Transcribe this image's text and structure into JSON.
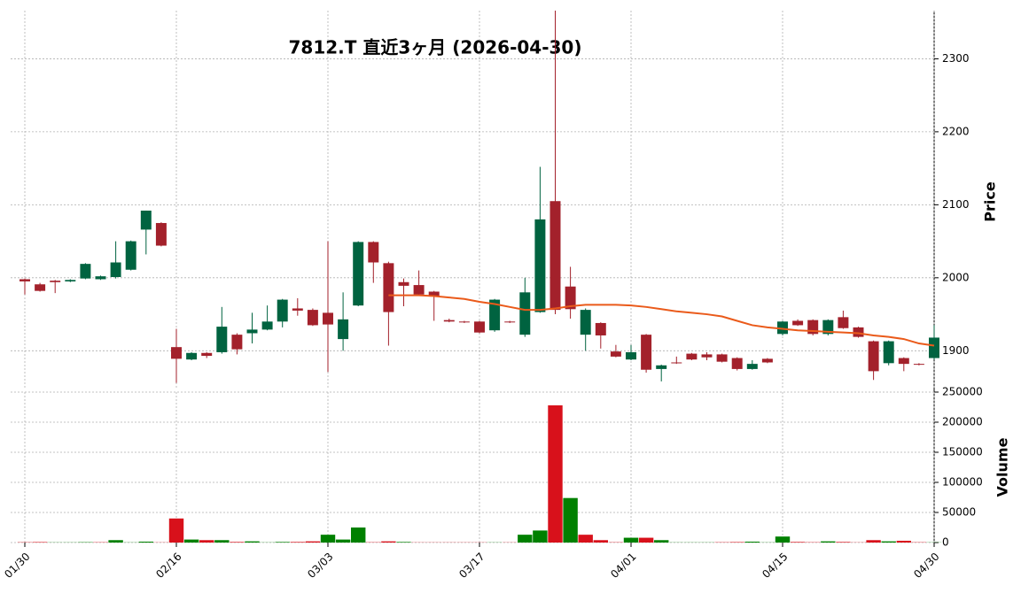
{
  "chart_data": {
    "type": "candlestick",
    "title": "7812.T  直近3ヶ月  (2026-04-30)",
    "ylabel": "Price",
    "volume_label": "Volume",
    "categories": [
      "01/30",
      null,
      null,
      null,
      null,
      null,
      null,
      null,
      null,
      null,
      "02/16",
      null,
      null,
      null,
      null,
      null,
      null,
      null,
      null,
      null,
      "03/03",
      null,
      null,
      null,
      null,
      null,
      null,
      null,
      null,
      null,
      "03/17",
      null,
      null,
      null,
      null,
      null,
      null,
      null,
      null,
      null,
      "04/01",
      null,
      null,
      null,
      null,
      null,
      null,
      null,
      null,
      null,
      "04/15",
      null,
      null,
      null,
      null,
      null,
      null,
      null,
      null,
      null,
      "04/30"
    ],
    "open": [
      1998,
      1991,
      1996,
      1995,
      1999,
      1998,
      2001,
      2011,
      2066,
      2075,
      1905,
      1888,
      1897,
      1898,
      1922,
      1924,
      1929,
      1940,
      1958,
      1956,
      1952,
      1916,
      1962,
      2049,
      2020,
      1994,
      1990,
      1981,
      1942,
      1940,
      1940,
      1928,
      1940,
      1922,
      1953,
      2105,
      1988,
      1922,
      1938,
      1899,
      1888,
      1922,
      1875,
      1884,
      1896,
      1895,
      1895,
      1890,
      1875,
      1889,
      1923,
      1941,
      1942,
      1923,
      1946,
      1932,
      1913,
      1883,
      1890,
      1882,
      1890
    ],
    "high": [
      1999,
      1993,
      1997,
      1998,
      2020,
      2003,
      2050,
      2051,
      2092,
      2076,
      1930,
      1898,
      1898,
      1960,
      1924,
      1952,
      1962,
      1971,
      1972,
      1958,
      2050,
      1980,
      2050,
      2050,
      2022,
      1999,
      2010,
      1982,
      1944,
      1941,
      1941,
      1971,
      1941,
      2000,
      2152,
      2366,
      2015,
      1958,
      1939,
      1908,
      1908,
      1923,
      1881,
      1892,
      1897,
      1898,
      1896,
      1891,
      1887,
      1890,
      1941,
      1943,
      1943,
      1943,
      1955,
      1933,
      1914,
      1914,
      1891,
      1883,
      1935
    ],
    "low": [
      1977,
      1981,
      1979,
      1994,
      1998,
      1997,
      1999,
      2010,
      2032,
      2043,
      1856,
      1887,
      1890,
      1896,
      1895,
      1910,
      1928,
      1932,
      1948,
      1934,
      1871,
      1900,
      1961,
      1993,
      1907,
      1961,
      1976,
      1941,
      1939,
      1938,
      1924,
      1926,
      1938,
      1919,
      1952,
      1950,
      1944,
      1900,
      1903,
      1891,
      1887,
      1870,
      1858,
      1882,
      1887,
      1887,
      1884,
      1873,
      1874,
      1883,
      1921,
      1934,
      1921,
      1921,
      1930,
      1918,
      1860,
      1880,
      1872,
      1880,
      1888
    ],
    "close": [
      1995,
      1982,
      1994,
      1997,
      2019,
      2002,
      2021,
      2050,
      2092,
      2044,
      1889,
      1897,
      1893,
      1933,
      1902,
      1929,
      1940,
      1970,
      1955,
      1935,
      1936,
      1943,
      2049,
      2021,
      1953,
      1989,
      1977,
      1975,
      1940,
      1939,
      1925,
      1970,
      1939,
      1980,
      2080,
      1956,
      1957,
      1956,
      1921,
      1892,
      1898,
      1874,
      1880,
      1883,
      1888,
      1891,
      1885,
      1875,
      1882,
      1884,
      1940,
      1935,
      1923,
      1942,
      1931,
      1919,
      1872,
      1913,
      1882,
      1881,
      1918
    ],
    "volume": [
      500,
      800,
      300,
      300,
      600,
      500,
      4000,
      300,
      1500,
      300,
      40000,
      5000,
      4000,
      4000,
      1000,
      2000,
      300,
      1000,
      1000,
      2000,
      13000,
      5000,
      25000,
      500,
      2000,
      1000,
      300,
      300,
      300,
      300,
      300,
      300,
      300,
      13000,
      20000,
      228000,
      74000,
      13000,
      4000,
      500,
      8000,
      8000,
      4000,
      300,
      300,
      300,
      500,
      800,
      1500,
      300,
      10000,
      1000,
      500,
      2000,
      1000,
      300,
      4000,
      2000,
      3000,
      500,
      300
    ],
    "ma": [
      null,
      null,
      null,
      null,
      null,
      null,
      null,
      null,
      null,
      null,
      null,
      null,
      null,
      null,
      null,
      null,
      null,
      null,
      null,
      null,
      null,
      null,
      null,
      null,
      1976,
      1976,
      1976,
      1975,
      1973,
      1971,
      1967,
      1964,
      1960,
      1956,
      1956,
      1958,
      1961,
      1963,
      1963,
      1963,
      1962,
      1960,
      1957,
      1954,
      1952,
      1950,
      1947,
      1941,
      1935,
      1932,
      1930,
      1928,
      1927,
      1926,
      1925,
      1924,
      1921,
      1919,
      1916,
      1910,
      1907
    ],
    "ylim": [
      1847,
      2366
    ],
    "yticks": [
      1900,
      2000,
      2100,
      2200,
      2300
    ],
    "volume_ylim": [
      0,
      250000
    ],
    "volume_yticks": [
      0,
      50000,
      100000,
      150000,
      200000,
      250000
    ],
    "up_color": "#006340",
    "down_color": "#a3212b",
    "volume_up_color": "#008000",
    "volume_down_color": "#d8111b",
    "ma_color": "#ea5a1a",
    "grid": true
  }
}
